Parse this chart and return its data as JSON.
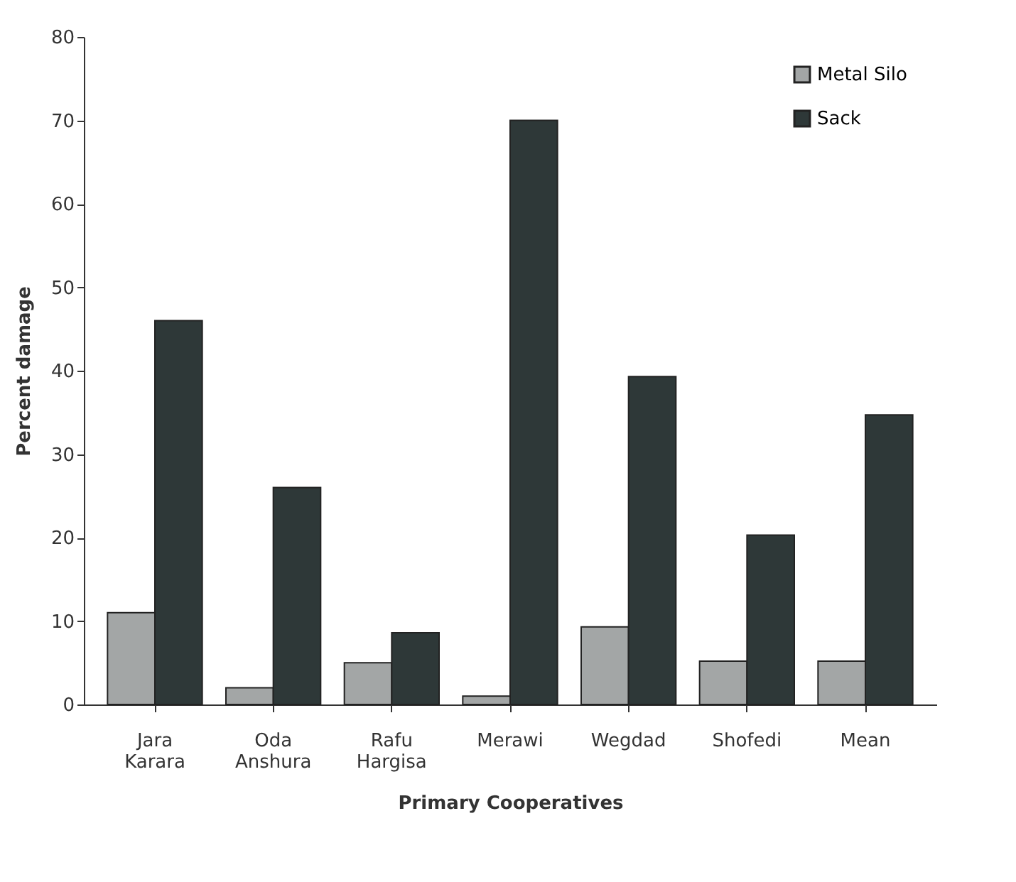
{
  "chart_data": {
    "type": "bar",
    "xlabel": "Primary Cooperatives",
    "ylabel": "Percent damage",
    "categories": [
      "Jara Karara",
      "Oda Anshura",
      "Rafu Hargisa",
      "Merawi",
      "Wegdad",
      "Shofedi",
      "Mean"
    ],
    "series": [
      {
        "name": "Metal Silo",
        "color": "#a3a6a6",
        "values": [
          11,
          2,
          5,
          1,
          9.3,
          5.2,
          5.2
        ]
      },
      {
        "name": "Sack",
        "color": "#2e3838",
        "values": [
          46,
          26,
          8.6,
          70,
          39.3,
          20.3,
          34.7
        ]
      }
    ],
    "ylim": [
      0,
      80
    ],
    "yticks": [
      0,
      10,
      20,
      30,
      40,
      50,
      60,
      70,
      80
    ],
    "grid": false,
    "legend": "top right"
  }
}
